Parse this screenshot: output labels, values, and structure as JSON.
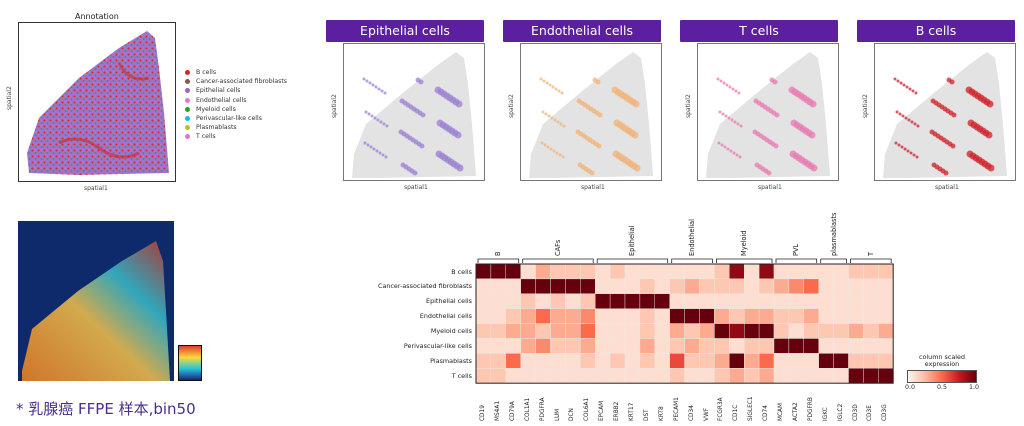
{
  "annotation_panel": {
    "title": "Annotation",
    "xlabel": "spatial1",
    "ylabel": "spatial2",
    "legend": [
      {
        "label": "B cells",
        "color": "#d62728"
      },
      {
        "label": "Cancer-associated fibroblasts",
        "color": "#8c564b"
      },
      {
        "label": "Epithelial cells",
        "color": "#9467bd"
      },
      {
        "label": "Endothelial cells",
        "color": "#e377c2"
      },
      {
        "label": "Myeloid cells",
        "color": "#2ca02c"
      },
      {
        "label": "Perivascular-like cells",
        "color": "#17becf"
      },
      {
        "label": "Plasmablasts",
        "color": "#bcbd22"
      },
      {
        "label": "T cells",
        "color": "#e377c2"
      }
    ]
  },
  "celltype_panels": [
    {
      "title": "Epithelial cells",
      "xlabel": "spatial1",
      "ylabel": "spatial2",
      "color": "#9b7fd0"
    },
    {
      "title": "Endothelial cells",
      "xlabel": "spatial1",
      "ylabel": "spatial2",
      "color": "#f2b27a"
    },
    {
      "title": "T cells",
      "xlabel": "spatial1",
      "ylabel": "spatial2",
      "color": "#e879b0"
    },
    {
      "title": "B cells",
      "xlabel": "spatial1",
      "ylabel": "spatial2",
      "color": "#d0202a"
    }
  ],
  "caption": "* 乳腺癌 FFPE 样本,bin50",
  "heatmap": {
    "rows": [
      "B cells",
      "Cancer-associated fibroblasts",
      "Epithelial cells",
      "Endothelial cells",
      "Myeloid cells",
      "Perivascular-like cells",
      "Plasmablasts",
      "T cells"
    ],
    "columns": [
      "CD19",
      "MS4A1",
      "CD79A",
      "COL1A1",
      "PDGFRA",
      "LUM",
      "DCN",
      "COL6A1",
      "EPCAM",
      "ERBB2",
      "KRT17",
      "DST",
      "KRT8",
      "PECAM1",
      "CD34",
      "VWF",
      "FCGR3A",
      "CD1C",
      "SIGLEC1",
      "CD74",
      "MCAM",
      "ACTA2",
      "PDGFRB",
      "IGKC",
      "IGLC2",
      "CD3D",
      "CD3E",
      "CD3G"
    ],
    "groups": [
      {
        "label": "B",
        "start": 0,
        "end": 2
      },
      {
        "label": "CAFs",
        "start": 3,
        "end": 7
      },
      {
        "label": "Epithelial",
        "start": 8,
        "end": 12
      },
      {
        "label": "Endothelial",
        "start": 13,
        "end": 15
      },
      {
        "label": "Myeloid",
        "start": 16,
        "end": 19
      },
      {
        "label": "PVL",
        "start": 20,
        "end": 22
      },
      {
        "label": "plasmablasts",
        "start": 23,
        "end": 24
      },
      {
        "label": "T",
        "start": 25,
        "end": 27
      }
    ],
    "values": [
      [
        1.0,
        1.0,
        1.0,
        0.1,
        0.3,
        0.2,
        0.2,
        0.2,
        0.1,
        0.2,
        0.1,
        0.1,
        0.1,
        0.1,
        0.1,
        0.1,
        0.2,
        0.9,
        0.1,
        0.9,
        0.1,
        0.1,
        0.1,
        0.1,
        0.1,
        0.2,
        0.2,
        0.2
      ],
      [
        0.1,
        0.1,
        0.1,
        1.0,
        1.0,
        1.0,
        1.0,
        1.0,
        0.1,
        0.1,
        0.1,
        0.2,
        0.1,
        0.2,
        0.3,
        0.2,
        0.2,
        0.2,
        0.1,
        0.2,
        0.3,
        0.4,
        0.5,
        0.1,
        0.1,
        0.1,
        0.1,
        0.1
      ],
      [
        0.1,
        0.1,
        0.1,
        0.2,
        0.1,
        0.2,
        0.1,
        0.2,
        1.0,
        1.0,
        1.0,
        1.0,
        1.0,
        0.1,
        0.1,
        0.1,
        0.1,
        0.1,
        0.1,
        0.1,
        0.1,
        0.1,
        0.1,
        0.1,
        0.1,
        0.1,
        0.1,
        0.1
      ],
      [
        0.1,
        0.1,
        0.2,
        0.3,
        0.5,
        0.3,
        0.3,
        0.4,
        0.1,
        0.1,
        0.1,
        0.2,
        0.1,
        1.0,
        1.0,
        1.0,
        0.3,
        0.2,
        0.3,
        0.3,
        0.2,
        0.2,
        0.3,
        0.1,
        0.1,
        0.1,
        0.1,
        0.1
      ],
      [
        0.2,
        0.2,
        0.3,
        0.3,
        0.2,
        0.3,
        0.3,
        0.5,
        0.1,
        0.1,
        0.1,
        0.2,
        0.1,
        0.3,
        0.2,
        0.3,
        1.0,
        0.9,
        1.0,
        1.0,
        0.2,
        0.1,
        0.2,
        0.2,
        0.2,
        0.3,
        0.2,
        0.3
      ],
      [
        0.1,
        0.1,
        0.1,
        0.3,
        0.4,
        0.2,
        0.2,
        0.3,
        0.1,
        0.1,
        0.1,
        0.3,
        0.1,
        0.2,
        0.3,
        0.2,
        0.2,
        0.1,
        0.2,
        0.2,
        1.0,
        1.0,
        1.0,
        0.1,
        0.1,
        0.1,
        0.1,
        0.1
      ],
      [
        0.2,
        0.2,
        0.5,
        0.1,
        0.1,
        0.1,
        0.1,
        0.2,
        0.1,
        0.2,
        0.1,
        0.2,
        0.1,
        0.6,
        0.2,
        0.2,
        0.3,
        1.0,
        0.3,
        0.5,
        0.1,
        0.1,
        0.1,
        1.0,
        1.0,
        0.2,
        0.2,
        0.2
      ],
      [
        0.2,
        0.2,
        0.1,
        0.1,
        0.1,
        0.1,
        0.1,
        0.1,
        0.1,
        0.1,
        0.1,
        0.1,
        0.1,
        0.2,
        0.1,
        0.1,
        0.2,
        0.3,
        0.2,
        0.3,
        0.1,
        0.1,
        0.1,
        0.1,
        0.1,
        1.0,
        1.0,
        1.0
      ]
    ]
  },
  "colorbar": {
    "title_line1": "column scaled",
    "title_line2": "expression",
    "ticks": [
      "0.0",
      "0.5",
      "1.0"
    ]
  }
}
